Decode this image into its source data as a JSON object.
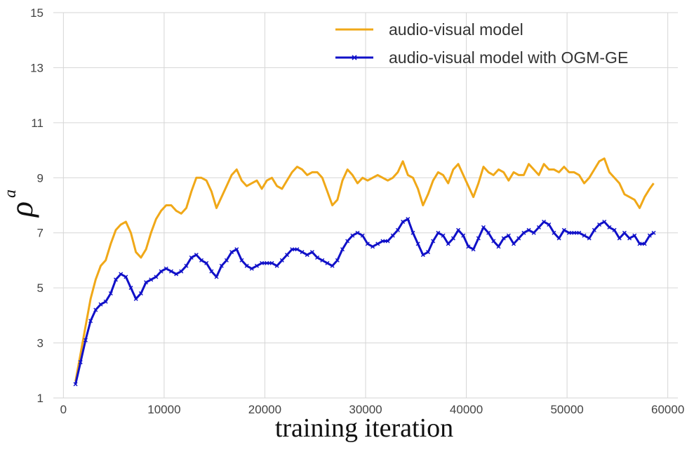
{
  "chart_data": {
    "type": "line",
    "title": "",
    "xlabel": "training iteration",
    "ylabel": "ρ",
    "ylabel_superscript": "a",
    "xlim": [
      -1000,
      61000
    ],
    "ylim": [
      1,
      15
    ],
    "xticks": [
      0,
      10000,
      20000,
      30000,
      40000,
      50000,
      60000
    ],
    "yticks": [
      1,
      3,
      5,
      7,
      9,
      11,
      13,
      15
    ],
    "grid": true,
    "legend_position": "top-right",
    "series": [
      {
        "name": "audio-visual model",
        "color": "#f0a818",
        "marker": "none",
        "x": [
          1200,
          1700,
          2200,
          2700,
          3200,
          3700,
          4200,
          4700,
          5200,
          5700,
          6200,
          6700,
          7200,
          7700,
          8200,
          8700,
          9200,
          9700,
          10200,
          10700,
          11200,
          11700,
          12200,
          12700,
          13200,
          13700,
          14200,
          14700,
          15200,
          15700,
          16200,
          16700,
          17200,
          17700,
          18200,
          18700,
          19200,
          19700,
          20200,
          20700,
          21200,
          21700,
          22200,
          22700,
          23200,
          23700,
          24200,
          24700,
          25200,
          25700,
          26200,
          26700,
          27200,
          27700,
          28200,
          28700,
          29200,
          29700,
          30200,
          30700,
          31200,
          31700,
          32200,
          32700,
          33200,
          33700,
          34200,
          34700,
          35200,
          35700,
          36200,
          36700,
          37200,
          37700,
          38200,
          38700,
          39200,
          39700,
          40200,
          40700,
          41200,
          41700,
          42200,
          42700,
          43200,
          43700,
          44200,
          44700,
          45200,
          45700,
          46200,
          46700,
          47200,
          47700,
          48200,
          48700,
          49200,
          49700,
          50200,
          50700,
          51200,
          51700,
          52200,
          52700,
          53200,
          53700,
          54200,
          54700,
          55200,
          55700,
          56200,
          56700,
          57200,
          57700,
          58200,
          58600
        ],
        "y": [
          1.6,
          2.6,
          3.6,
          4.6,
          5.3,
          5.8,
          6.0,
          6.6,
          7.1,
          7.3,
          7.4,
          7.0,
          6.3,
          6.1,
          6.4,
          7.0,
          7.5,
          7.8,
          8.0,
          8.0,
          7.8,
          7.7,
          7.9,
          8.5,
          9.0,
          9.0,
          8.9,
          8.5,
          7.9,
          8.3,
          8.7,
          9.1,
          9.3,
          8.9,
          8.7,
          8.8,
          8.9,
          8.6,
          8.9,
          9.0,
          8.7,
          8.6,
          8.9,
          9.2,
          9.4,
          9.3,
          9.1,
          9.2,
          9.2,
          9.0,
          8.5,
          8.0,
          8.2,
          8.9,
          9.3,
          9.1,
          8.8,
          9.0,
          8.9,
          9.0,
          9.1,
          9.0,
          8.9,
          9.0,
          9.2,
          9.6,
          9.1,
          9.0,
          8.6,
          8.0,
          8.4,
          8.9,
          9.2,
          9.1,
          8.8,
          9.3,
          9.5,
          9.1,
          8.7,
          8.3,
          8.8,
          9.4,
          9.2,
          9.1,
          9.3,
          9.2,
          8.9,
          9.2,
          9.1,
          9.1,
          9.5,
          9.3,
          9.1,
          9.5,
          9.3,
          9.3,
          9.2,
          9.4,
          9.2,
          9.2,
          9.1,
          8.8,
          9.0,
          9.3,
          9.6,
          9.7,
          9.2,
          9.0,
          8.8,
          8.4,
          8.3,
          8.2,
          7.9,
          8.3,
          8.6,
          8.8
        ]
      },
      {
        "name": "audio-visual model with OGM-GE",
        "color": "#1010c8",
        "marker": "x",
        "x": [
          1200,
          1700,
          2200,
          2700,
          3200,
          3700,
          4200,
          4700,
          5200,
          5700,
          6200,
          6700,
          7200,
          7700,
          8200,
          8700,
          9200,
          9700,
          10200,
          10700,
          11200,
          11700,
          12200,
          12700,
          13200,
          13700,
          14200,
          14700,
          15200,
          15700,
          16200,
          16700,
          17200,
          17700,
          18200,
          18700,
          19200,
          19700,
          20200,
          20700,
          21200,
          21700,
          22200,
          22700,
          23200,
          23700,
          24200,
          24700,
          25200,
          25700,
          26200,
          26700,
          27200,
          27700,
          28200,
          28700,
          29200,
          29700,
          30200,
          30700,
          31200,
          31700,
          32200,
          32700,
          33200,
          33700,
          34200,
          34700,
          35200,
          35700,
          36200,
          36700,
          37200,
          37700,
          38200,
          38700,
          39200,
          39700,
          40200,
          40700,
          41200,
          41700,
          42200,
          42700,
          43200,
          43700,
          44200,
          44700,
          45200,
          45700,
          46200,
          46700,
          47200,
          47700,
          48200,
          48700,
          49200,
          49700,
          50200,
          50700,
          51200,
          51700,
          52200,
          52700,
          53200,
          53700,
          54200,
          54700,
          55200,
          55700,
          56200,
          56700,
          57200,
          57700,
          58200,
          58600
        ],
        "y": [
          1.5,
          2.3,
          3.1,
          3.8,
          4.2,
          4.4,
          4.5,
          4.8,
          5.3,
          5.5,
          5.4,
          5.0,
          4.6,
          4.8,
          5.2,
          5.3,
          5.4,
          5.6,
          5.7,
          5.6,
          5.5,
          5.6,
          5.8,
          6.1,
          6.2,
          6.0,
          5.9,
          5.6,
          5.4,
          5.8,
          6.0,
          6.3,
          6.4,
          6.0,
          5.8,
          5.7,
          5.8,
          5.9,
          5.9,
          5.9,
          5.8,
          6.0,
          6.2,
          6.4,
          6.4,
          6.3,
          6.2,
          6.3,
          6.1,
          6.0,
          5.9,
          5.8,
          6.0,
          6.4,
          6.7,
          6.9,
          7.0,
          6.9,
          6.6,
          6.5,
          6.6,
          6.7,
          6.7,
          6.9,
          7.1,
          7.4,
          7.5,
          7.0,
          6.6,
          6.2,
          6.3,
          6.7,
          7.0,
          6.9,
          6.6,
          6.8,
          7.1,
          6.9,
          6.5,
          6.4,
          6.8,
          7.2,
          7.0,
          6.7,
          6.5,
          6.8,
          6.9,
          6.6,
          6.8,
          7.0,
          7.1,
          7.0,
          7.2,
          7.4,
          7.3,
          7.0,
          6.8,
          7.1,
          7.0,
          7.0,
          7.0,
          6.9,
          6.8,
          7.1,
          7.3,
          7.4,
          7.2,
          7.1,
          6.8,
          7.0,
          6.8,
          6.9,
          6.6,
          6.6,
          6.9,
          7.0
        ]
      }
    ]
  }
}
